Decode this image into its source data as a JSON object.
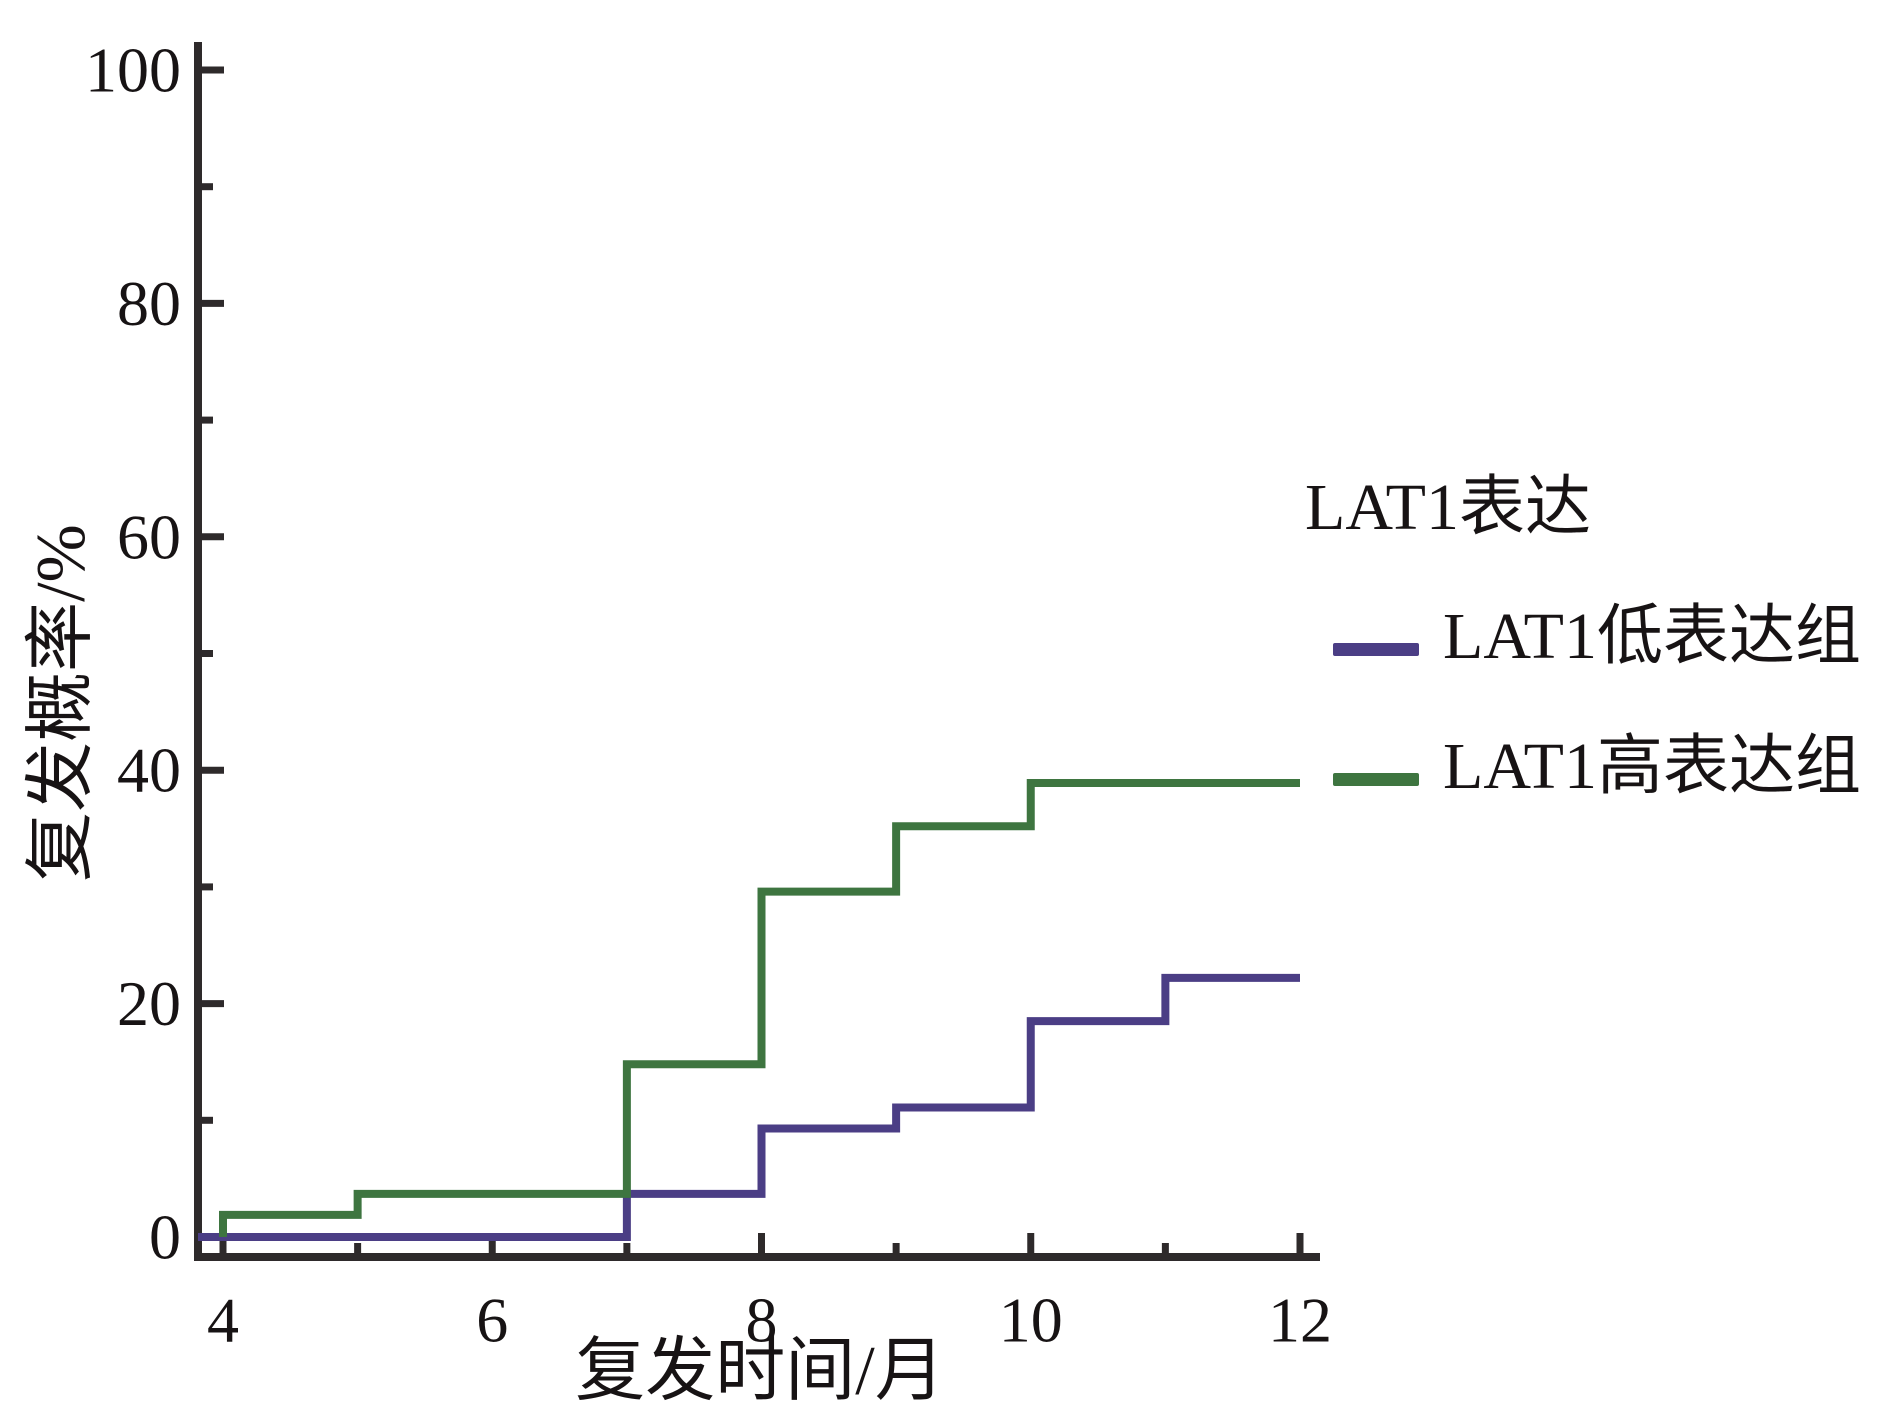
{
  "figure": {
    "background": "#ffffff",
    "text_color": "#171314",
    "axis_color": "#2e2a2b"
  },
  "chart_data": {
    "type": "line",
    "subtype": "step",
    "title": "",
    "xlabel": "复发时间/月",
    "ylabel": "复发概率/%",
    "xlim": [
      4,
      12
    ],
    "ylim": [
      0,
      100
    ],
    "x_major_ticks": [
      4,
      6,
      8,
      10,
      12
    ],
    "x_minor_ticks": [
      5,
      7,
      9,
      11
    ],
    "y_major_ticks": [
      0,
      20,
      40,
      60,
      80,
      100
    ],
    "y_minor_ticks": [
      10,
      30,
      50,
      70,
      90
    ],
    "grid": false,
    "legend": {
      "title": "LAT1表达",
      "position": "right-outside",
      "entries": [
        {
          "label": "LAT1低表达组",
          "color": "#4b3e85"
        },
        {
          "label": "LAT1高表达组",
          "color": "#3e7540"
        }
      ]
    },
    "series": [
      {
        "name": "LAT1低表达组",
        "color": "#4b3e85",
        "starts_at_axis": true,
        "points": [
          [
            4,
            0
          ],
          [
            7,
            0
          ],
          [
            7,
            3.7
          ],
          [
            8,
            3.7
          ],
          [
            8,
            9.3
          ],
          [
            9,
            9.3
          ],
          [
            9,
            11.1
          ],
          [
            10,
            11.1
          ],
          [
            10,
            18.5
          ],
          [
            11,
            18.5
          ],
          [
            11,
            22.2
          ],
          [
            12,
            22.2
          ]
        ]
      },
      {
        "name": "LAT1高表达组",
        "color": "#3e7540",
        "starts_at_axis": false,
        "points": [
          [
            4,
            0
          ],
          [
            4,
            1.9
          ],
          [
            5,
            1.9
          ],
          [
            5,
            3.7
          ],
          [
            7,
            3.7
          ],
          [
            7,
            14.8
          ],
          [
            8,
            14.8
          ],
          [
            8,
            29.6
          ],
          [
            9,
            29.6
          ],
          [
            9,
            35.2
          ],
          [
            10,
            35.2
          ],
          [
            10,
            38.9
          ],
          [
            12,
            38.9
          ]
        ]
      }
    ]
  }
}
